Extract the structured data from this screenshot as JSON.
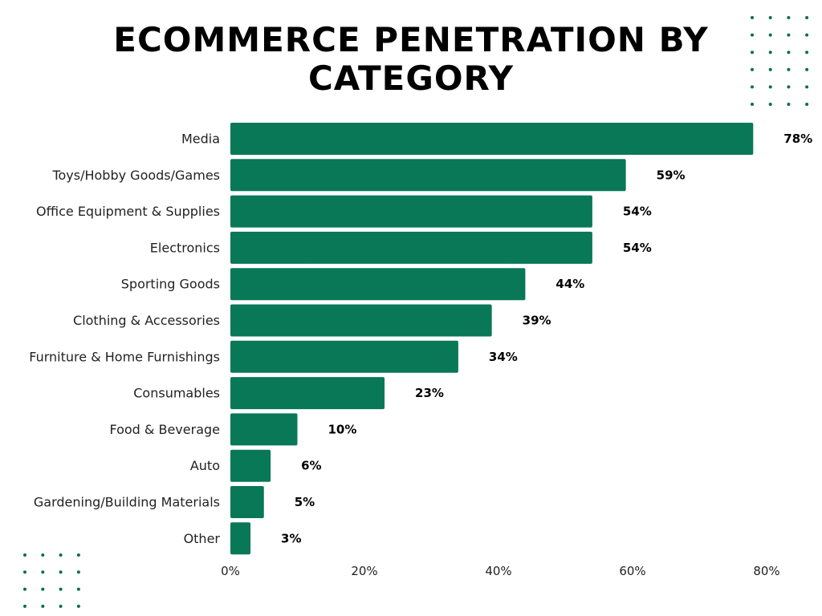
{
  "chart_data": {
    "type": "bar",
    "orientation": "horizontal",
    "title_lines": [
      "ECOMMERCE PENETRATION BY",
      "CATEGORY"
    ],
    "xlabel": "",
    "ylabel": "",
    "categories": [
      "Media",
      "Toys/Hobby Goods/Games",
      "Office Equipment & Supplies",
      "Electronics",
      "Sporting Goods",
      "Clothing & Accessories",
      "Furniture & Home Furnishings",
      "Consumables",
      "Food & Beverage",
      "Auto",
      "Gardening/Building Materials",
      "Other"
    ],
    "values": [
      78,
      59,
      54,
      54,
      44,
      39,
      34,
      23,
      10,
      6,
      5,
      3
    ],
    "value_labels": [
      "78%",
      "59%",
      "54%",
      "54%",
      "44%",
      "39%",
      "34%",
      "23%",
      "10%",
      "6%",
      "5%",
      "3%"
    ],
    "xlim": [
      0,
      80
    ],
    "x_ticks": [
      0,
      20,
      40,
      60,
      80
    ],
    "x_tick_labels": [
      "0%",
      "20%",
      "40%",
      "60%",
      "80%"
    ],
    "grid": false,
    "legend": "none",
    "bar_color": "#087857",
    "decor_color": "#0a6e4f"
  }
}
